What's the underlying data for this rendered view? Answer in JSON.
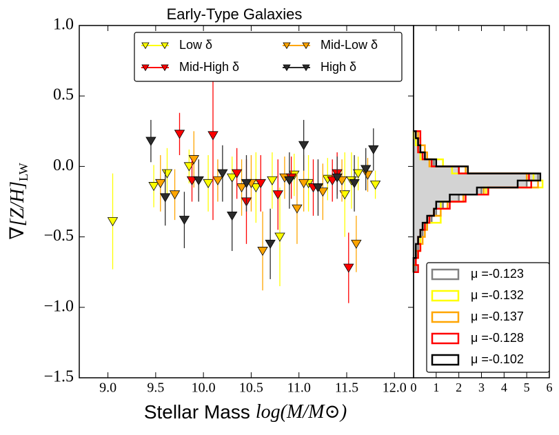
{
  "chart_data": [
    {
      "type": "scatter",
      "title": "Early-Type Galaxies",
      "xlabel": {
        "text": "Stellar Mass",
        "math": "log(M/M⊙)"
      },
      "ylabel": {
        "text": "∇[Z/H]",
        "subscript": "LW"
      },
      "xlim": [
        8.7,
        12.2
      ],
      "ylim": [
        -1.5,
        1.0
      ],
      "xticks": [
        {
          "value": 9.0,
          "label": "9.0"
        },
        {
          "value": 9.5,
          "label": "9.5"
        },
        {
          "value": 10.0,
          "label": "10.0"
        },
        {
          "value": 10.5,
          "label": "10.5"
        },
        {
          "value": 11.0,
          "label": "11.0"
        },
        {
          "value": 11.5,
          "label": "11.5"
        },
        {
          "value": 12.0,
          "label": "12.0"
        }
      ],
      "yticks": [
        {
          "value": 1.0,
          "label": "1.0"
        },
        {
          "value": 0.5,
          "label": "0.5"
        },
        {
          "value": 0.0,
          "label": "0.0"
        },
        {
          "value": -0.5,
          "label": "−0.5"
        },
        {
          "value": -1.0,
          "label": "−1.0"
        },
        {
          "value": -1.5,
          "label": "−1.5"
        }
      ],
      "series": [
        {
          "name": "Low δ",
          "color": "#ffff00",
          "x": [
            9.05,
            9.48,
            9.62,
            9.85,
            10.05,
            10.3,
            10.55,
            10.72,
            10.95,
            11.1,
            11.3,
            11.48,
            11.62,
            11.8,
            10.8,
            11.55
          ],
          "values": [
            -0.39,
            -0.14,
            -0.05,
            0.0,
            -0.12,
            -0.08,
            -0.15,
            -0.1,
            -0.06,
            -0.12,
            -0.09,
            -0.2,
            -0.05,
            -0.13,
            -0.5,
            -0.1
          ],
          "errors": [
            0.34,
            0.15,
            0.18,
            0.12,
            0.2,
            0.15,
            0.25,
            0.2,
            0.15,
            0.2,
            0.15,
            0.3,
            0.12,
            0.1,
            0.35,
            0.2
          ]
        },
        {
          "name": "Mid-Low δ",
          "color": "#ffa500",
          "x": [
            9.55,
            9.7,
            9.9,
            10.15,
            10.4,
            10.62,
            10.85,
            11.05,
            11.25,
            11.45,
            11.6,
            11.72,
            10.98,
            10.5
          ],
          "values": [
            -0.12,
            -0.2,
            0.05,
            -0.1,
            -0.15,
            -0.6,
            -0.08,
            -0.12,
            -0.18,
            -0.1,
            -0.55,
            -0.06,
            -0.3,
            -0.12
          ],
          "errors": [
            0.2,
            0.18,
            0.2,
            0.15,
            0.2,
            0.28,
            0.15,
            0.2,
            0.2,
            0.15,
            0.2,
            0.12,
            0.25,
            0.2
          ]
        },
        {
          "name": "Mid-High δ",
          "color": "#ff0000",
          "x": [
            9.75,
            10.1,
            9.88,
            10.35,
            10.6,
            10.78,
            10.92,
            11.15,
            11.35,
            11.52,
            11.4,
            10.45
          ],
          "values": [
            0.23,
            0.22,
            -0.1,
            -0.05,
            -0.12,
            -0.2,
            -0.08,
            -0.15,
            -0.1,
            -0.72,
            -0.05,
            -0.25
          ],
          "errors": [
            0.15,
            0.6,
            0.15,
            0.18,
            0.2,
            0.25,
            0.15,
            0.2,
            0.15,
            0.25,
            0.15,
            0.3
          ]
        },
        {
          "name": "High δ",
          "color": "#2b2b2b",
          "x": [
            9.45,
            9.6,
            9.8,
            9.95,
            10.2,
            10.45,
            10.7,
            10.9,
            11.05,
            11.2,
            11.4,
            11.58,
            11.78,
            10.3,
            11.7
          ],
          "values": [
            0.18,
            -0.22,
            -0.38,
            -0.1,
            -0.05,
            -0.12,
            -0.55,
            -0.1,
            0.15,
            -0.15,
            -0.08,
            -0.12,
            0.12,
            -0.35,
            -0.02
          ],
          "errors": [
            0.15,
            0.2,
            0.2,
            0.15,
            0.2,
            0.2,
            0.25,
            0.2,
            0.18,
            0.2,
            0.15,
            0.2,
            0.15,
            0.25,
            0.15
          ]
        }
      ]
    },
    {
      "type": "histogram",
      "xlim": [
        0,
        6
      ],
      "xticks": [
        0,
        1,
        2,
        3,
        4,
        5,
        6
      ],
      "bins": [
        -0.75,
        -0.7,
        -0.65,
        -0.6,
        -0.55,
        -0.5,
        -0.45,
        -0.4,
        -0.35,
        -0.3,
        -0.25,
        -0.2,
        -0.15,
        -0.1,
        -0.05,
        0.0,
        0.05,
        0.1,
        0.15,
        0.2,
        0.25
      ],
      "series": [
        {
          "name": "μ =-0.123",
          "color": "#808080",
          "filled": true,
          "values": [
            0.1,
            0.1,
            0.2,
            0.2,
            0.3,
            0.4,
            0.6,
            0.8,
            1.0,
            1.3,
            2.0,
            3.0,
            5.0,
            5.5,
            2.0,
            0.9,
            0.4,
            0.3,
            0.2,
            0.1
          ]
        },
        {
          "name": "μ =-0.132",
          "color": "#ffff00",
          "filled": false,
          "values": [
            0.0,
            0.1,
            0.2,
            0.3,
            0.3,
            0.3,
            0.5,
            1.2,
            0.9,
            1.2,
            2.2,
            3.2,
            5.7,
            5.3,
            1.7,
            1.3,
            0.3,
            0.2,
            0.1,
            0.0
          ]
        },
        {
          "name": "μ =-0.137",
          "color": "#ffa500",
          "filled": false,
          "values": [
            0.0,
            0.1,
            0.1,
            0.3,
            0.4,
            0.5,
            0.6,
            0.7,
            1.2,
            1.5,
            2.2,
            3.1,
            5.5,
            5.0,
            2.3,
            0.7,
            0.6,
            0.5,
            0.3,
            0.2
          ]
        },
        {
          "name": "μ =-0.128",
          "color": "#ff0000",
          "filled": false,
          "values": [
            0.2,
            0.1,
            0.2,
            0.3,
            0.2,
            0.3,
            0.5,
            0.7,
            0.9,
            1.6,
            2.3,
            3.3,
            5.2,
            5.1,
            2.0,
            0.8,
            0.4,
            0.2,
            0.3,
            0.3
          ]
        },
        {
          "name": "μ =-0.102",
          "color": "#000000",
          "filled": false,
          "values": [
            0.0,
            0.0,
            0.1,
            0.1,
            0.2,
            0.3,
            0.4,
            0.6,
            0.9,
            1.0,
            1.6,
            2.8,
            4.6,
            5.6,
            2.4,
            1.0,
            0.5,
            0.3,
            0.2,
            0.1
          ]
        }
      ]
    }
  ]
}
